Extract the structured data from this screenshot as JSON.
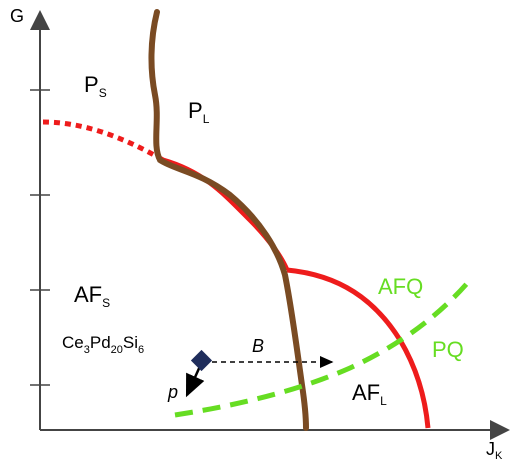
{
  "axes": {
    "y_label": "G",
    "x_label_main": "J",
    "x_label_sub": "K"
  },
  "regions": {
    "ps": {
      "main": "P",
      "sub": "S"
    },
    "pl": {
      "main": "P",
      "sub": "L"
    },
    "afs": {
      "main": "AF",
      "sub": "S"
    },
    "afl": {
      "main": "AF",
      "sub": "L"
    },
    "afq": "AFQ",
    "pq": "PQ"
  },
  "compound": {
    "parts": [
      "Ce",
      "3",
      "Pd",
      "20",
      "Si",
      "6"
    ]
  },
  "arrows": {
    "b": "B",
    "p": "p"
  },
  "colors": {
    "brown": "#7a4b23",
    "red": "#ee1c1c",
    "green": "#66dd22",
    "axis": "#444444",
    "marker": "#1f2d5c"
  }
}
